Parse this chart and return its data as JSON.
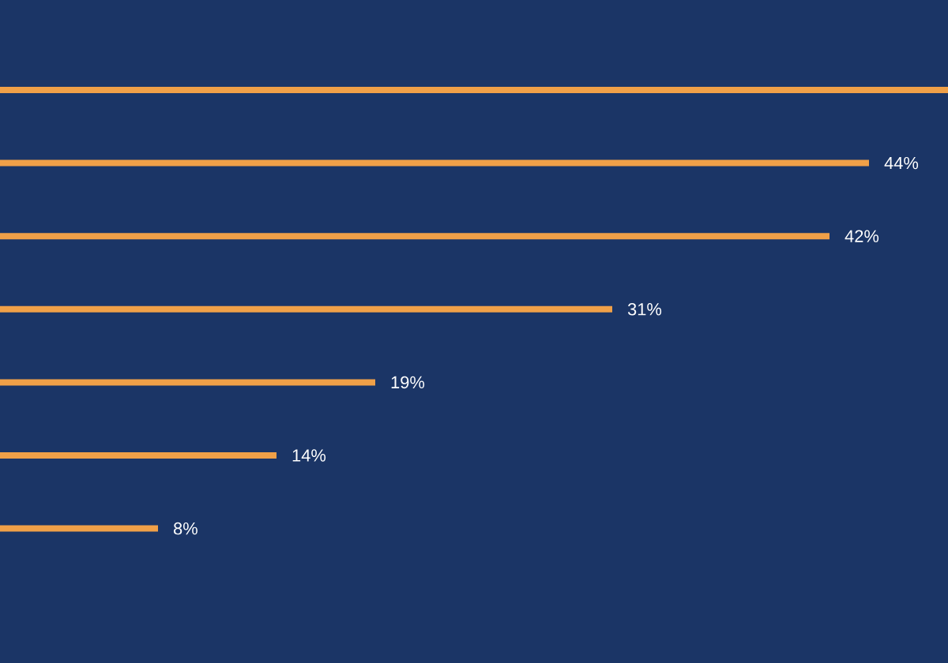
{
  "chart_data": {
    "type": "bar",
    "orientation": "horizontal",
    "categories": [
      null,
      null,
      null,
      null,
      null,
      null,
      null
    ],
    "values": [
      48,
      44,
      42,
      31,
      19,
      14,
      8
    ],
    "value_labels": [
      null,
      "44%",
      "42%",
      "31%",
      "19%",
      "14%",
      "8%"
    ],
    "color": "#f0a048",
    "xlim": [
      0,
      48
    ],
    "tick_labels": false
  }
}
